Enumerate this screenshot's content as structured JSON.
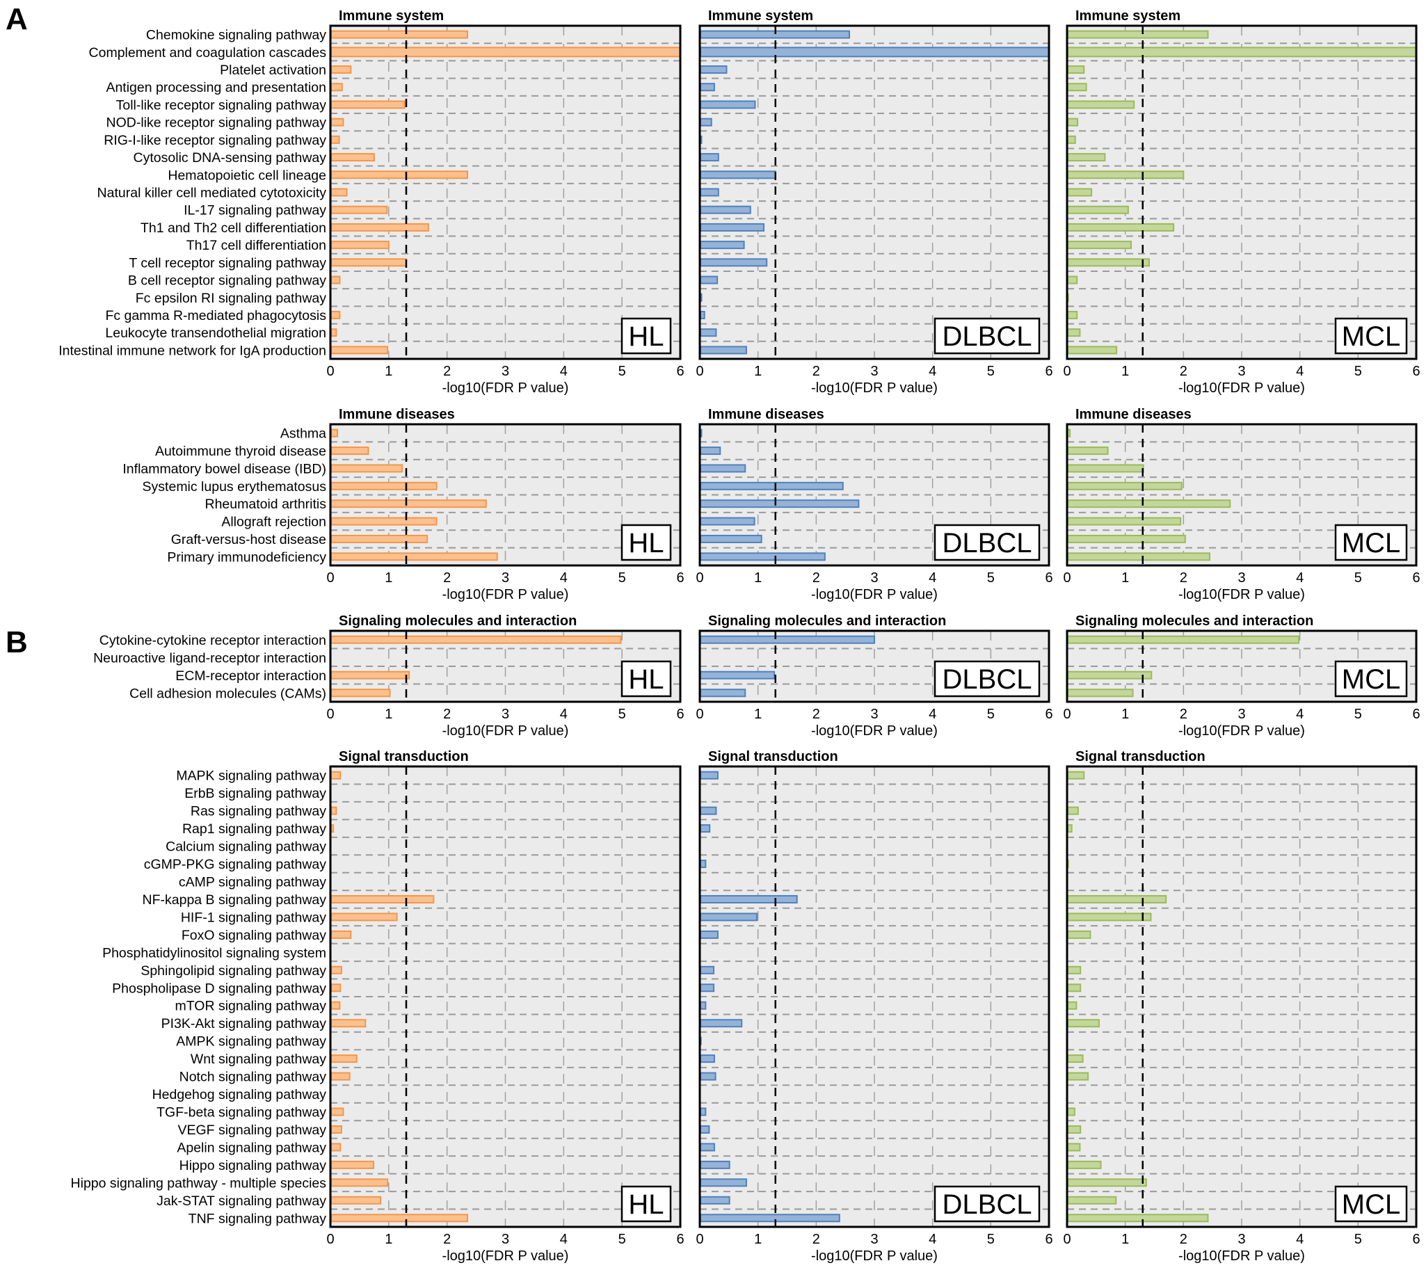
{
  "figure": {
    "section_labels": [
      "A",
      "B"
    ]
  },
  "chart_data": {
    "type": "bar",
    "orientation": "horizontal",
    "xlabel": "-log10(FDR P value)",
    "xlim": [
      0,
      6
    ],
    "xticks": [
      "0",
      "1",
      "2",
      "3",
      "4",
      "5",
      "6"
    ],
    "threshold_line": 1.3,
    "grid": true,
    "datasets": [
      {
        "name": "HL",
        "colors": {
          "fill": "#FAC090",
          "stroke": "#F79646"
        }
      },
      {
        "name": "DLBCL",
        "colors": {
          "fill": "#95B3D7",
          "stroke": "#4F81BD"
        }
      },
      {
        "name": "MCL",
        "colors": {
          "fill": "#C3D69B",
          "stroke": "#9BBB59"
        }
      }
    ],
    "groups": [
      {
        "section": "A",
        "title": "Immune system",
        "categories": [
          "Chemokine signaling pathway",
          "Complement and coagulation cascades",
          "Platelet activation",
          "Antigen processing and presentation",
          "Toll-like receptor signaling pathway",
          "NOD-like receptor signaling pathway",
          "RIG-I-like receptor signaling pathway",
          "Cytosolic DNA-sensing pathway",
          "Hematopoietic cell lineage",
          "Natural killer cell mediated cytotoxicity",
          "IL-17 signaling pathway",
          "Th1 and Th2 cell differentiation",
          "Th17 cell differentiation",
          "T cell receptor signaling pathway",
          "B cell receptor signaling pathway",
          "Fc epsilon RI signaling pathway",
          "Fc gamma R-mediated phagocytosis",
          "Leukocyte transendothelial migration",
          "Intestinal immune network for IgA production"
        ],
        "series": [
          {
            "name": "HL",
            "values": [
              2.35,
              6.0,
              0.35,
              0.2,
              1.27,
              0.22,
              0.15,
              0.75,
              2.35,
              0.28,
              0.97,
              1.68,
              1.0,
              1.3,
              0.16,
              0.01,
              0.16,
              0.1,
              0.98
            ]
          },
          {
            "name": "DLBCL",
            "values": [
              2.57,
              6.0,
              0.46,
              0.25,
              0.95,
              0.2,
              0.03,
              0.32,
              1.3,
              0.32,
              0.87,
              1.1,
              0.76,
              1.15,
              0.3,
              0.03,
              0.08,
              0.28,
              0.8
            ]
          },
          {
            "name": "MCL",
            "values": [
              2.42,
              6.0,
              0.29,
              0.33,
              1.15,
              0.18,
              0.14,
              0.65,
              2.0,
              0.42,
              1.05,
              1.83,
              1.1,
              1.41,
              0.17,
              0.02,
              0.17,
              0.22,
              0.85
            ]
          }
        ]
      },
      {
        "section": "A",
        "title": "Immune diseases",
        "categories": [
          "Asthma",
          "Autoimmune thyroid disease",
          "Inflammatory bowel disease (IBD)",
          "Systemic lupus erythematosus",
          "Rheumatoid arthritis",
          "Allograft rejection",
          "Graft-versus-host disease",
          "Primary immunodeficiency"
        ],
        "series": [
          {
            "name": "HL",
            "values": [
              0.12,
              0.65,
              1.23,
              1.82,
              2.67,
              1.82,
              1.66,
              2.86
            ]
          },
          {
            "name": "DLBCL",
            "values": [
              0.03,
              0.35,
              0.78,
              2.46,
              2.73,
              0.94,
              1.06,
              2.15
            ]
          },
          {
            "name": "MCL",
            "values": [
              0.05,
              0.7,
              1.31,
              1.97,
              2.8,
              1.95,
              2.03,
              2.45
            ]
          }
        ]
      },
      {
        "section": "B",
        "title": "Signaling molecules and interaction",
        "categories": [
          "Cytokine-cytokine receptor interaction",
          "Neuroactive ligand-receptor interaction",
          "ECM-receptor interaction",
          "Cell adhesion molecules (CAMs)"
        ],
        "series": [
          {
            "name": "HL",
            "values": [
              4.98,
              0,
              1.35,
              1.02
            ]
          },
          {
            "name": "DLBCL",
            "values": [
              3.0,
              0,
              1.28,
              0.78
            ]
          },
          {
            "name": "MCL",
            "values": [
              3.98,
              0,
              1.45,
              1.13
            ]
          }
        ]
      },
      {
        "section": "B",
        "title": "Signal transduction",
        "categories": [
          "MAPK signaling pathway",
          "ErbB signaling pathway",
          "Ras signaling pathway",
          "Rap1 signaling pathway",
          "Calcium signaling pathway",
          "cGMP-PKG signaling pathway",
          "cAMP signaling pathway",
          "NF-kappa B signaling pathway",
          "HIF-1 signaling pathway",
          "FoxO signaling pathway",
          "Phosphatidylinositol signaling system",
          "Sphingolipid signaling pathway",
          "Phospholipase D signaling pathway",
          "mTOR signaling pathway",
          "PI3K-Akt signaling pathway",
          "AMPK signaling pathway",
          "Wnt signaling pathway",
          "Notch signaling pathway",
          "Hedgehog signaling pathway",
          "TGF-beta signaling pathway",
          "VEGF signaling pathway",
          "Apelin signaling pathway",
          "Hippo signaling pathway",
          "Hippo signaling pathway - multiple species",
          "Jak-STAT signaling pathway",
          "TNF signaling pathway"
        ],
        "series": [
          {
            "name": "HL",
            "values": [
              0.17,
              0,
              0.1,
              0.05,
              0,
              0,
              0,
              1.77,
              1.14,
              0.35,
              0,
              0.19,
              0.17,
              0.16,
              0.6,
              0,
              0.45,
              0.33,
              0,
              0.22,
              0.19,
              0.17,
              0.74,
              0.98,
              0.86,
              2.35
            ]
          },
          {
            "name": "DLBCL",
            "values": [
              0.31,
              0,
              0.28,
              0.17,
              0,
              0.1,
              0,
              1.67,
              0.98,
              0.31,
              0,
              0.24,
              0.24,
              0.1,
              0.72,
              0.02,
              0.25,
              0.27,
              0,
              0.1,
              0.16,
              0.25,
              0.51,
              0.8,
              0.51,
              2.4
            ]
          },
          {
            "name": "MCL",
            "values": [
              0.29,
              0,
              0.19,
              0.08,
              0,
              0.02,
              0,
              1.7,
              1.44,
              0.4,
              0,
              0.23,
              0.23,
              0.16,
              0.55,
              0,
              0.27,
              0.36,
              0,
              0.13,
              0.23,
              0.22,
              0.58,
              1.36,
              0.84,
              2.42
            ]
          }
        ]
      }
    ]
  }
}
